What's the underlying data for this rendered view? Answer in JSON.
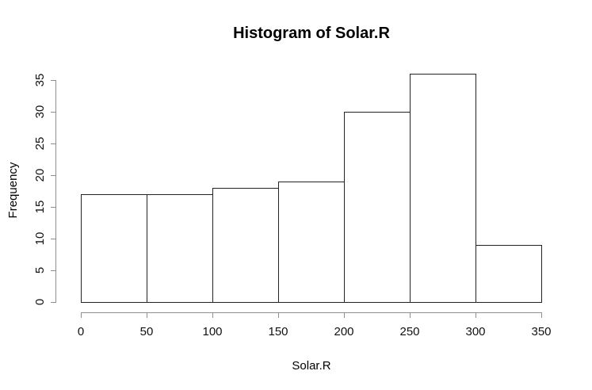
{
  "figure": {
    "background": "#ffffff",
    "text_color": "#000000",
    "axis_color": "#8e8e8e",
    "bar_border_color": "#222222",
    "bar_fill_color": "#ffffff"
  },
  "chart_data": {
    "type": "bar",
    "subtype": "histogram",
    "title": "Histogram of Solar.R",
    "xlabel": "Solar.R",
    "ylabel": "Frequency",
    "bin_edges": [
      0,
      50,
      100,
      150,
      200,
      250,
      300,
      350
    ],
    "values": [
      17,
      17,
      18,
      19,
      30,
      36,
      9
    ],
    "x_ticks": [
      0,
      50,
      100,
      150,
      200,
      250,
      300,
      350
    ],
    "y_ticks": [
      0,
      5,
      10,
      15,
      20,
      25,
      30,
      35
    ],
    "xlim": [
      0,
      350
    ],
    "ylim": [
      0,
      35
    ],
    "grid": false,
    "legend": "none"
  }
}
